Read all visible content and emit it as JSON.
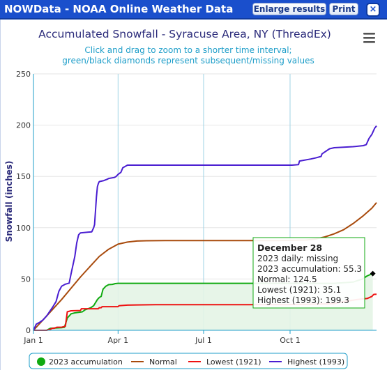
{
  "window": {
    "title": "NOWData - NOAA Online Weather Data",
    "enlarge_label": "Enlarge results",
    "print_label": "Print",
    "close_label": "×"
  },
  "chart_data": {
    "type": "line",
    "title": "Accumulated Snowfall - Syracuse Area, NY (ThreadEx)",
    "subtitle": "Click and drag to zoom to a shorter time interval; green/black diamonds represent subsequent/missing values",
    "ylabel": "Snowfall (inches)",
    "xlabel": "",
    "ylim": [
      0,
      250
    ],
    "xlim": [
      0,
      365
    ],
    "yticks": [
      0,
      50,
      100,
      150,
      200,
      250
    ],
    "xticks": [
      {
        "day": 0,
        "label": "Jan 1"
      },
      {
        "day": 90,
        "label": "Apr 1"
      },
      {
        "day": 181,
        "label": "Jul 1"
      },
      {
        "day": 273,
        "label": "Oct 1"
      }
    ],
    "grid": true,
    "legend_position": "bottom",
    "series": [
      {
        "name": "2023 accumulation",
        "color": "#11aa11",
        "fill": "#e4f4e6",
        "x": [
          0,
          14,
          16,
          18,
          30,
          33,
          36,
          38,
          40,
          44,
          48,
          52,
          55,
          58,
          61,
          64,
          66,
          68,
          70,
          72,
          74,
          77,
          80,
          84,
          87,
          90,
          100,
          120,
          160,
          200,
          240,
          280,
          300,
          310,
          320,
          340,
          350,
          355,
          360,
          361
        ],
        "y": [
          0,
          0,
          1,
          2,
          2.5,
          3,
          12,
          14,
          16,
          17,
          17.5,
          18,
          20,
          21,
          22,
          24,
          27,
          30,
          32,
          33,
          40,
          43,
          44.5,
          44.8,
          45.5,
          45.8,
          45.8,
          45.8,
          45.8,
          45.8,
          45.8,
          45.8,
          45.8,
          45.8,
          45.8,
          47,
          50,
          53,
          55,
          55.3
        ]
      },
      {
        "name": "Normal",
        "color": "#a84a0c",
        "x": [
          0,
          10,
          20,
          30,
          40,
          50,
          60,
          70,
          80,
          90,
          100,
          110,
          120,
          140,
          180,
          220,
          260,
          290,
          300,
          310,
          320,
          330,
          340,
          350,
          360,
          365
        ],
        "y": [
          0,
          10,
          20,
          30,
          41,
          52,
          62,
          72,
          79,
          84,
          86,
          87,
          87.3,
          87.5,
          87.5,
          87.5,
          87.5,
          88,
          89,
          91,
          94,
          98,
          104,
          111,
          119,
          124.5
        ]
      },
      {
        "name": "Lowest (1921)",
        "color": "#ee1111",
        "x": [
          0,
          14,
          18,
          20,
          22,
          25,
          30,
          34,
          36,
          40,
          50,
          51,
          69,
          70,
          72,
          73,
          90,
          91,
          100,
          110,
          130,
          180,
          230,
          270,
          300,
          320,
          330,
          345,
          355,
          360,
          362,
          365
        ],
        "y": [
          0,
          0,
          1,
          2,
          2,
          3,
          3,
          4,
          18,
          19,
          19.3,
          21,
          21,
          22,
          22,
          23,
          23,
          24,
          24.5,
          24.7,
          24.9,
          25,
          25,
          25.1,
          25.5,
          26,
          28,
          30,
          31,
          33,
          35,
          35.1
        ]
      },
      {
        "name": "Highest (1993)",
        "color": "#4a1ed1",
        "x": [
          0,
          3,
          7,
          10,
          14,
          17,
          20,
          24,
          27,
          30,
          34,
          38,
          40,
          44,
          46,
          48,
          50,
          62,
          64,
          65,
          66,
          67,
          68,
          69,
          70,
          75,
          79,
          80,
          86,
          88,
          90,
          93,
          95,
          100,
          140,
          200,
          260,
          275,
          282,
          283,
          295,
          300,
          306,
          307,
          315,
          320,
          340,
          351,
          354,
          357,
          360,
          363,
          365
        ],
        "y": [
          0,
          6,
          8,
          10,
          14,
          18,
          22,
          28,
          38,
          43,
          45,
          46,
          55,
          72,
          85,
          93,
          95,
          96,
          100,
          103,
          117,
          130,
          140,
          143,
          145,
          146,
          147.5,
          148,
          149,
          150,
          152,
          154,
          158.5,
          161,
          161,
          161,
          161,
          161,
          161.5,
          165,
          167,
          168,
          169.5,
          172,
          177,
          178,
          179,
          180,
          181,
          187,
          191,
          197,
          199.3
        ]
      }
    ],
    "tooltip": {
      "date": "December 28",
      "line1": "2023 daily: missing",
      "line2": "2023 accumulation: 55.3",
      "line3": "Normal: 124.5",
      "line4": "Lowest (1921): 35.1",
      "line5": "Highest (1993): 199.3"
    }
  }
}
